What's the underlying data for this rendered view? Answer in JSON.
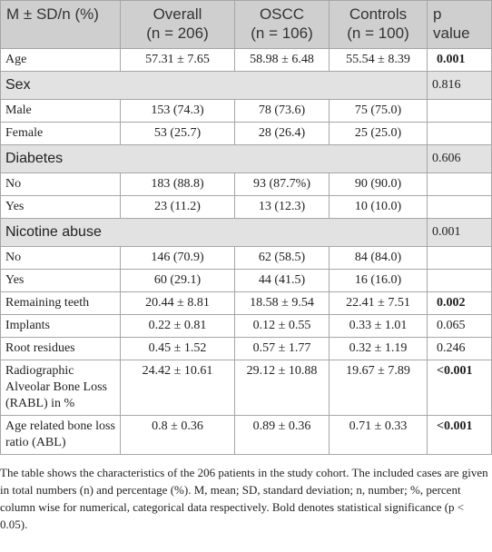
{
  "table": {
    "header": [
      [
        "M ± SD/n (%)"
      ],
      [
        "Overall",
        "(n = 206)"
      ],
      [
        "OSCC",
        "(n = 106)"
      ],
      [
        "Controls",
        "(n = 100)"
      ],
      [
        "p",
        "value"
      ]
    ],
    "rows": [
      {
        "cells": [
          "Age",
          "57.31 ± 7.65",
          "58.98 ± 6.48",
          "55.54 ± 8.39",
          "0.001"
        ],
        "bold": true
      },
      {
        "section": "Sex",
        "p": "0.816"
      },
      {
        "cells": [
          "Male",
          "153 (74.3)",
          "78 (73.6)",
          "75 (75.0)"
        ]
      },
      {
        "cells": [
          "Female",
          "53 (25.7)",
          "28 (26.4)",
          "25 (25.0)"
        ]
      },
      {
        "section": "Diabetes",
        "p": "0.606"
      },
      {
        "cells": [
          "No",
          "183 (88.8)",
          "93 (87.7%)",
          "90 (90.0)"
        ]
      },
      {
        "cells": [
          "Yes",
          "23 (11.2)",
          "13 (12.3)",
          "10 (10.0)"
        ]
      },
      {
        "section": "Nicotine abuse",
        "p": "0.001"
      },
      {
        "cells": [
          "No",
          "146 (70.9)",
          "62 (58.5)",
          "84 (84.0)"
        ]
      },
      {
        "cells": [
          "Yes",
          "60 (29.1)",
          "44 (41.5)",
          "16 (16.0)"
        ]
      },
      {
        "cells": [
          "Remaining teeth",
          "20.44 ± 8.81",
          "18.58 ± 9.54",
          "22.41 ± 7.51",
          "0.002"
        ],
        "bold": true
      },
      {
        "cells": [
          "Implants",
          "0.22 ± 0.81",
          "0.12 ± 0.55",
          "0.33 ± 1.01",
          "0.065"
        ]
      },
      {
        "cells": [
          "Root residues",
          "0.45 ± 1.52",
          "0.57 ± 1.77",
          "0.32 ± 1.19",
          "0.246"
        ]
      },
      {
        "cells": [
          "Radiographic Alveolar Bone Loss (RABL) in %",
          "24.42 ± 10.61",
          "29.12 ± 10.88",
          "19.67 ± 7.89",
          "<0.001"
        ],
        "bold": true
      },
      {
        "cells": [
          "Age related bone loss ratio (ABL)",
          "0.8 ± 0.36",
          "0.89 ± 0.36",
          "0.71 ± 0.33",
          "<0.001"
        ],
        "bold": true
      }
    ]
  },
  "footnote": "The table shows the characteristics of the 206 patients in the study cohort. The included cases are given in total numbers (n) and percentage (%). M, mean; SD, standard deviation; n, number; %, percent column wise for numerical, categorical data respectively. Bold denotes statistical significance (p < 0.05)."
}
